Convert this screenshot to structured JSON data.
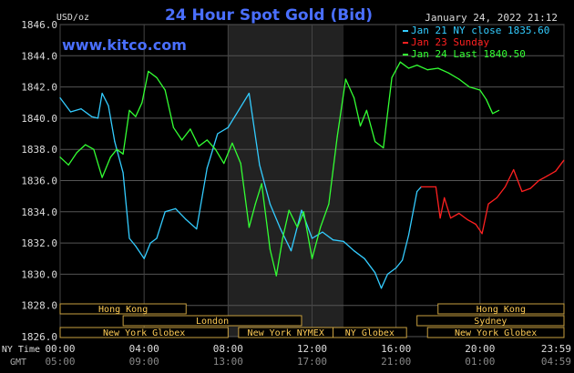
{
  "chart_data": {
    "type": "line",
    "title": "24 Hour Spot Gold (Bid)",
    "watermark": "www.kitco.com",
    "ylabel": "USD/oz",
    "timestamp": "January 24, 2022 21:12",
    "ylim": [
      1826.0,
      1846.0
    ],
    "yticks": [
      "1846.0",
      "1844.0",
      "1842.0",
      "1840.0",
      "1838.0",
      "1836.0",
      "1834.0",
      "1832.0",
      "1830.0",
      "1828.0",
      "1826.0"
    ],
    "x_ny_ticks": [
      "00:00",
      "04:00",
      "08:00",
      "12:00",
      "16:00",
      "20:00",
      "23:59"
    ],
    "x_gmt_ticks": [
      "05:00",
      "09:00",
      "13:00",
      "17:00",
      "21:00",
      "01:00",
      "04:59"
    ],
    "x_row_labels": {
      "ny": "NY Time",
      "gmt": "GMT"
    },
    "legend": [
      {
        "label": "Jan 21 NY close 1835.60",
        "color": "#33ccff"
      },
      {
        "label": "Jan 23 Sunday",
        "color": "#ff2020"
      },
      {
        "label": "Jan 24 Last 1840.50",
        "color": "#33ff33"
      }
    ],
    "sessions": [
      {
        "label": "Hong Kong",
        "row": 0
      },
      {
        "label": "London",
        "row": 1
      },
      {
        "label": "New York Globex",
        "row": 2
      },
      {
        "label": "New York NYMEX",
        "row": 2
      },
      {
        "label": "NY Globex",
        "row": 2
      },
      {
        "label": "Hong Kong",
        "row": 0
      },
      {
        "label": "Sydney",
        "row": 1
      },
      {
        "label": "New York Globex",
        "row": 2
      }
    ],
    "session_hours": [
      [
        0,
        6
      ],
      [
        3,
        11.5
      ],
      [
        0,
        8
      ],
      [
        8.5,
        13
      ],
      [
        13,
        16.5
      ],
      [
        18,
        24
      ],
      [
        17,
        24
      ],
      [
        17.5,
        24
      ]
    ],
    "highlight_hours": [
      8,
      13.5
    ],
    "series": [
      {
        "name": "Jan 21 NY close 1835.60",
        "color": "#33ccff",
        "x": [
          0,
          0.5,
          1,
          1.5,
          1.8,
          2,
          2.3,
          2.6,
          3,
          3.3,
          3.6,
          4,
          4.3,
          4.6,
          5,
          5.5,
          6,
          6.5,
          7,
          7.5,
          8,
          8.5,
          9,
          9.5,
          10,
          10.5,
          11,
          11.5,
          12,
          12.5,
          13,
          13.5,
          14,
          14.5,
          15,
          15.3,
          15.6,
          16,
          16.3,
          16.6,
          17,
          17.2
        ],
        "y": [
          1841.3,
          1840.4,
          1840.6,
          1840.1,
          1840.0,
          1841.6,
          1840.8,
          1838.5,
          1836.5,
          1832.3,
          1831.8,
          1831.0,
          1832.0,
          1832.3,
          1834.0,
          1834.2,
          1833.5,
          1832.9,
          1836.8,
          1839.0,
          1839.4,
          1840.5,
          1841.6,
          1837.0,
          1834.5,
          1832.9,
          1831.5,
          1834.1,
          1832.3,
          1832.7,
          1832.2,
          1832.1,
          1831.5,
          1831.0,
          1830.1,
          1829.1,
          1830.0,
          1830.4,
          1830.9,
          1832.5,
          1835.3,
          1835.6
        ]
      },
      {
        "name": "Jan 23 Sunday",
        "color": "#ff2020",
        "x": [
          17.2,
          17.9,
          18.1,
          18.3,
          18.6,
          19,
          19.4,
          19.8,
          20.1,
          20.4,
          20.8,
          21.2,
          21.6,
          22,
          22.4,
          22.8,
          23.2,
          23.6,
          23.99
        ],
        "y": [
          1835.6,
          1835.6,
          1833.6,
          1834.9,
          1833.6,
          1833.9,
          1833.5,
          1833.2,
          1832.6,
          1834.5,
          1834.9,
          1835.6,
          1836.7,
          1835.3,
          1835.5,
          1836.0,
          1836.3,
          1836.6,
          1837.3
        ]
      },
      {
        "name": "Jan 24 Last 1840.50",
        "color": "#33ff33",
        "x": [
          0,
          0.4,
          0.8,
          1.2,
          1.6,
          2,
          2.4,
          2.7,
          3,
          3.3,
          3.6,
          3.9,
          4.2,
          4.6,
          5,
          5.4,
          5.8,
          6.2,
          6.6,
          7,
          7.4,
          7.8,
          8.2,
          8.6,
          9,
          9.3,
          9.6,
          10,
          10.3,
          10.6,
          10.9,
          11.3,
          11.6,
          12,
          12.4,
          12.8,
          13.2,
          13.6,
          14,
          14.3,
          14.6,
          15,
          15.4,
          15.8,
          16.2,
          16.6,
          17,
          17.5,
          18,
          18.5,
          19,
          19.5,
          20,
          20.3,
          20.6,
          20.9
        ],
        "y": [
          1837.5,
          1837.0,
          1837.8,
          1838.3,
          1838.0,
          1836.2,
          1837.5,
          1838.0,
          1837.7,
          1840.5,
          1840.1,
          1841.0,
          1843.0,
          1842.6,
          1841.8,
          1839.4,
          1838.6,
          1839.3,
          1838.2,
          1838.6,
          1838.0,
          1837.1,
          1838.4,
          1837.1,
          1833.0,
          1834.5,
          1835.8,
          1831.6,
          1829.9,
          1832.3,
          1834.1,
          1833.0,
          1834.0,
          1831.0,
          1833.0,
          1834.5,
          1838.8,
          1842.5,
          1841.3,
          1839.5,
          1840.5,
          1838.5,
          1838.1,
          1842.6,
          1843.6,
          1843.2,
          1843.4,
          1843.1,
          1843.2,
          1842.9,
          1842.5,
          1842.0,
          1841.8,
          1841.2,
          1840.3,
          1840.5
        ]
      }
    ]
  }
}
